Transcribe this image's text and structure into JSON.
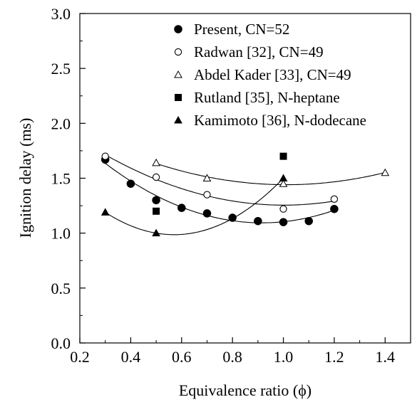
{
  "chart_data": {
    "type": "scatter",
    "xlabel": "Equivalence ratio (ϕ)",
    "ylabel": "Ignition delay (ms)",
    "xlim": [
      0.2,
      1.5
    ],
    "ylim": [
      0.0,
      3.0
    ],
    "xticks": [
      0.2,
      0.4,
      0.6,
      0.8,
      1.0,
      1.2,
      1.4
    ],
    "xtick_labels": [
      "0.2",
      "0.4",
      "0.6",
      "0.8",
      "1.0",
      "1.2",
      "1.4"
    ],
    "yticks": [
      0.0,
      0.5,
      1.0,
      1.5,
      2.0,
      2.5,
      3.0
    ],
    "ytick_labels": [
      "0.0",
      "0.5",
      "1.0",
      "1.5",
      "2.0",
      "2.5",
      "3.0"
    ],
    "grid": false,
    "legend_position": "top-right",
    "series": [
      {
        "name": "Present, CN=52",
        "marker": "filled-circle",
        "x": [
          0.3,
          0.4,
          0.5,
          0.6,
          0.7,
          0.8,
          0.9,
          1.0,
          1.1,
          1.2
        ],
        "y": [
          1.67,
          1.45,
          1.3,
          1.23,
          1.18,
          1.14,
          1.11,
          1.1,
          1.11,
          1.22
        ],
        "fit_curve": true
      },
      {
        "name": "Radwan [32], CN=49",
        "marker": "open-circle",
        "x": [
          0.3,
          0.5,
          0.7,
          1.0,
          1.2
        ],
        "y": [
          1.7,
          1.51,
          1.35,
          1.22,
          1.31
        ],
        "fit_curve": true
      },
      {
        "name": "Abdel Kader [33], CN=49",
        "marker": "open-triangle",
        "x": [
          0.5,
          0.7,
          1.0,
          1.4
        ],
        "y": [
          1.64,
          1.5,
          1.45,
          1.55
        ],
        "fit_curve": true
      },
      {
        "name": "Rutland [35], N-heptane",
        "marker": "filled-square",
        "x": [
          0.5,
          1.0
        ],
        "y": [
          1.2,
          1.7
        ],
        "fit_curve": false
      },
      {
        "name": "Kamimoto [36], N-dodecane",
        "marker": "filled-triangle",
        "x": [
          0.3,
          0.5,
          1.0
        ],
        "y": [
          1.19,
          1.0,
          1.5
        ],
        "fit_curve": true
      }
    ]
  }
}
